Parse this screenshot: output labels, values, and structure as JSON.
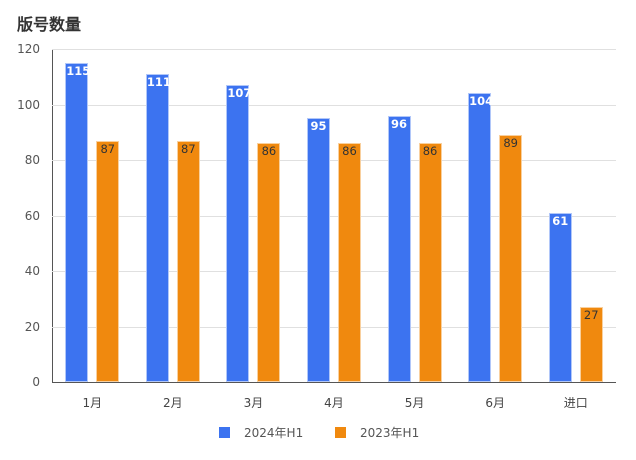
{
  "title": "版号数量",
  "colors": {
    "series0": "#3c73f0",
    "series1": "#f0890e"
  },
  "legend": [
    {
      "label": "2024年H1",
      "color": "#3c73f0"
    },
    {
      "label": "2023年H1",
      "color": "#f0890e"
    }
  ],
  "y_ticks": [
    "0",
    "20",
    "40",
    "60",
    "80",
    "100",
    "120"
  ],
  "chart_data": {
    "type": "bar",
    "title": "版号数量",
    "xlabel": "",
    "ylabel": "",
    "categories": [
      "1月",
      "2月",
      "3月",
      "4月",
      "5月",
      "6月",
      "进口"
    ],
    "series": [
      {
        "name": "2024年H1",
        "values": [
          115,
          111,
          107,
          95,
          96,
          104,
          61
        ]
      },
      {
        "name": "2023年H1",
        "values": [
          87,
          87,
          86,
          86,
          86,
          89,
          27
        ]
      }
    ],
    "ylim": [
      0,
      120
    ],
    "y_ticks": [
      0,
      20,
      40,
      60,
      80,
      100,
      120
    ],
    "grid": true,
    "legend_position": "bottom",
    "data_labels": true
  }
}
